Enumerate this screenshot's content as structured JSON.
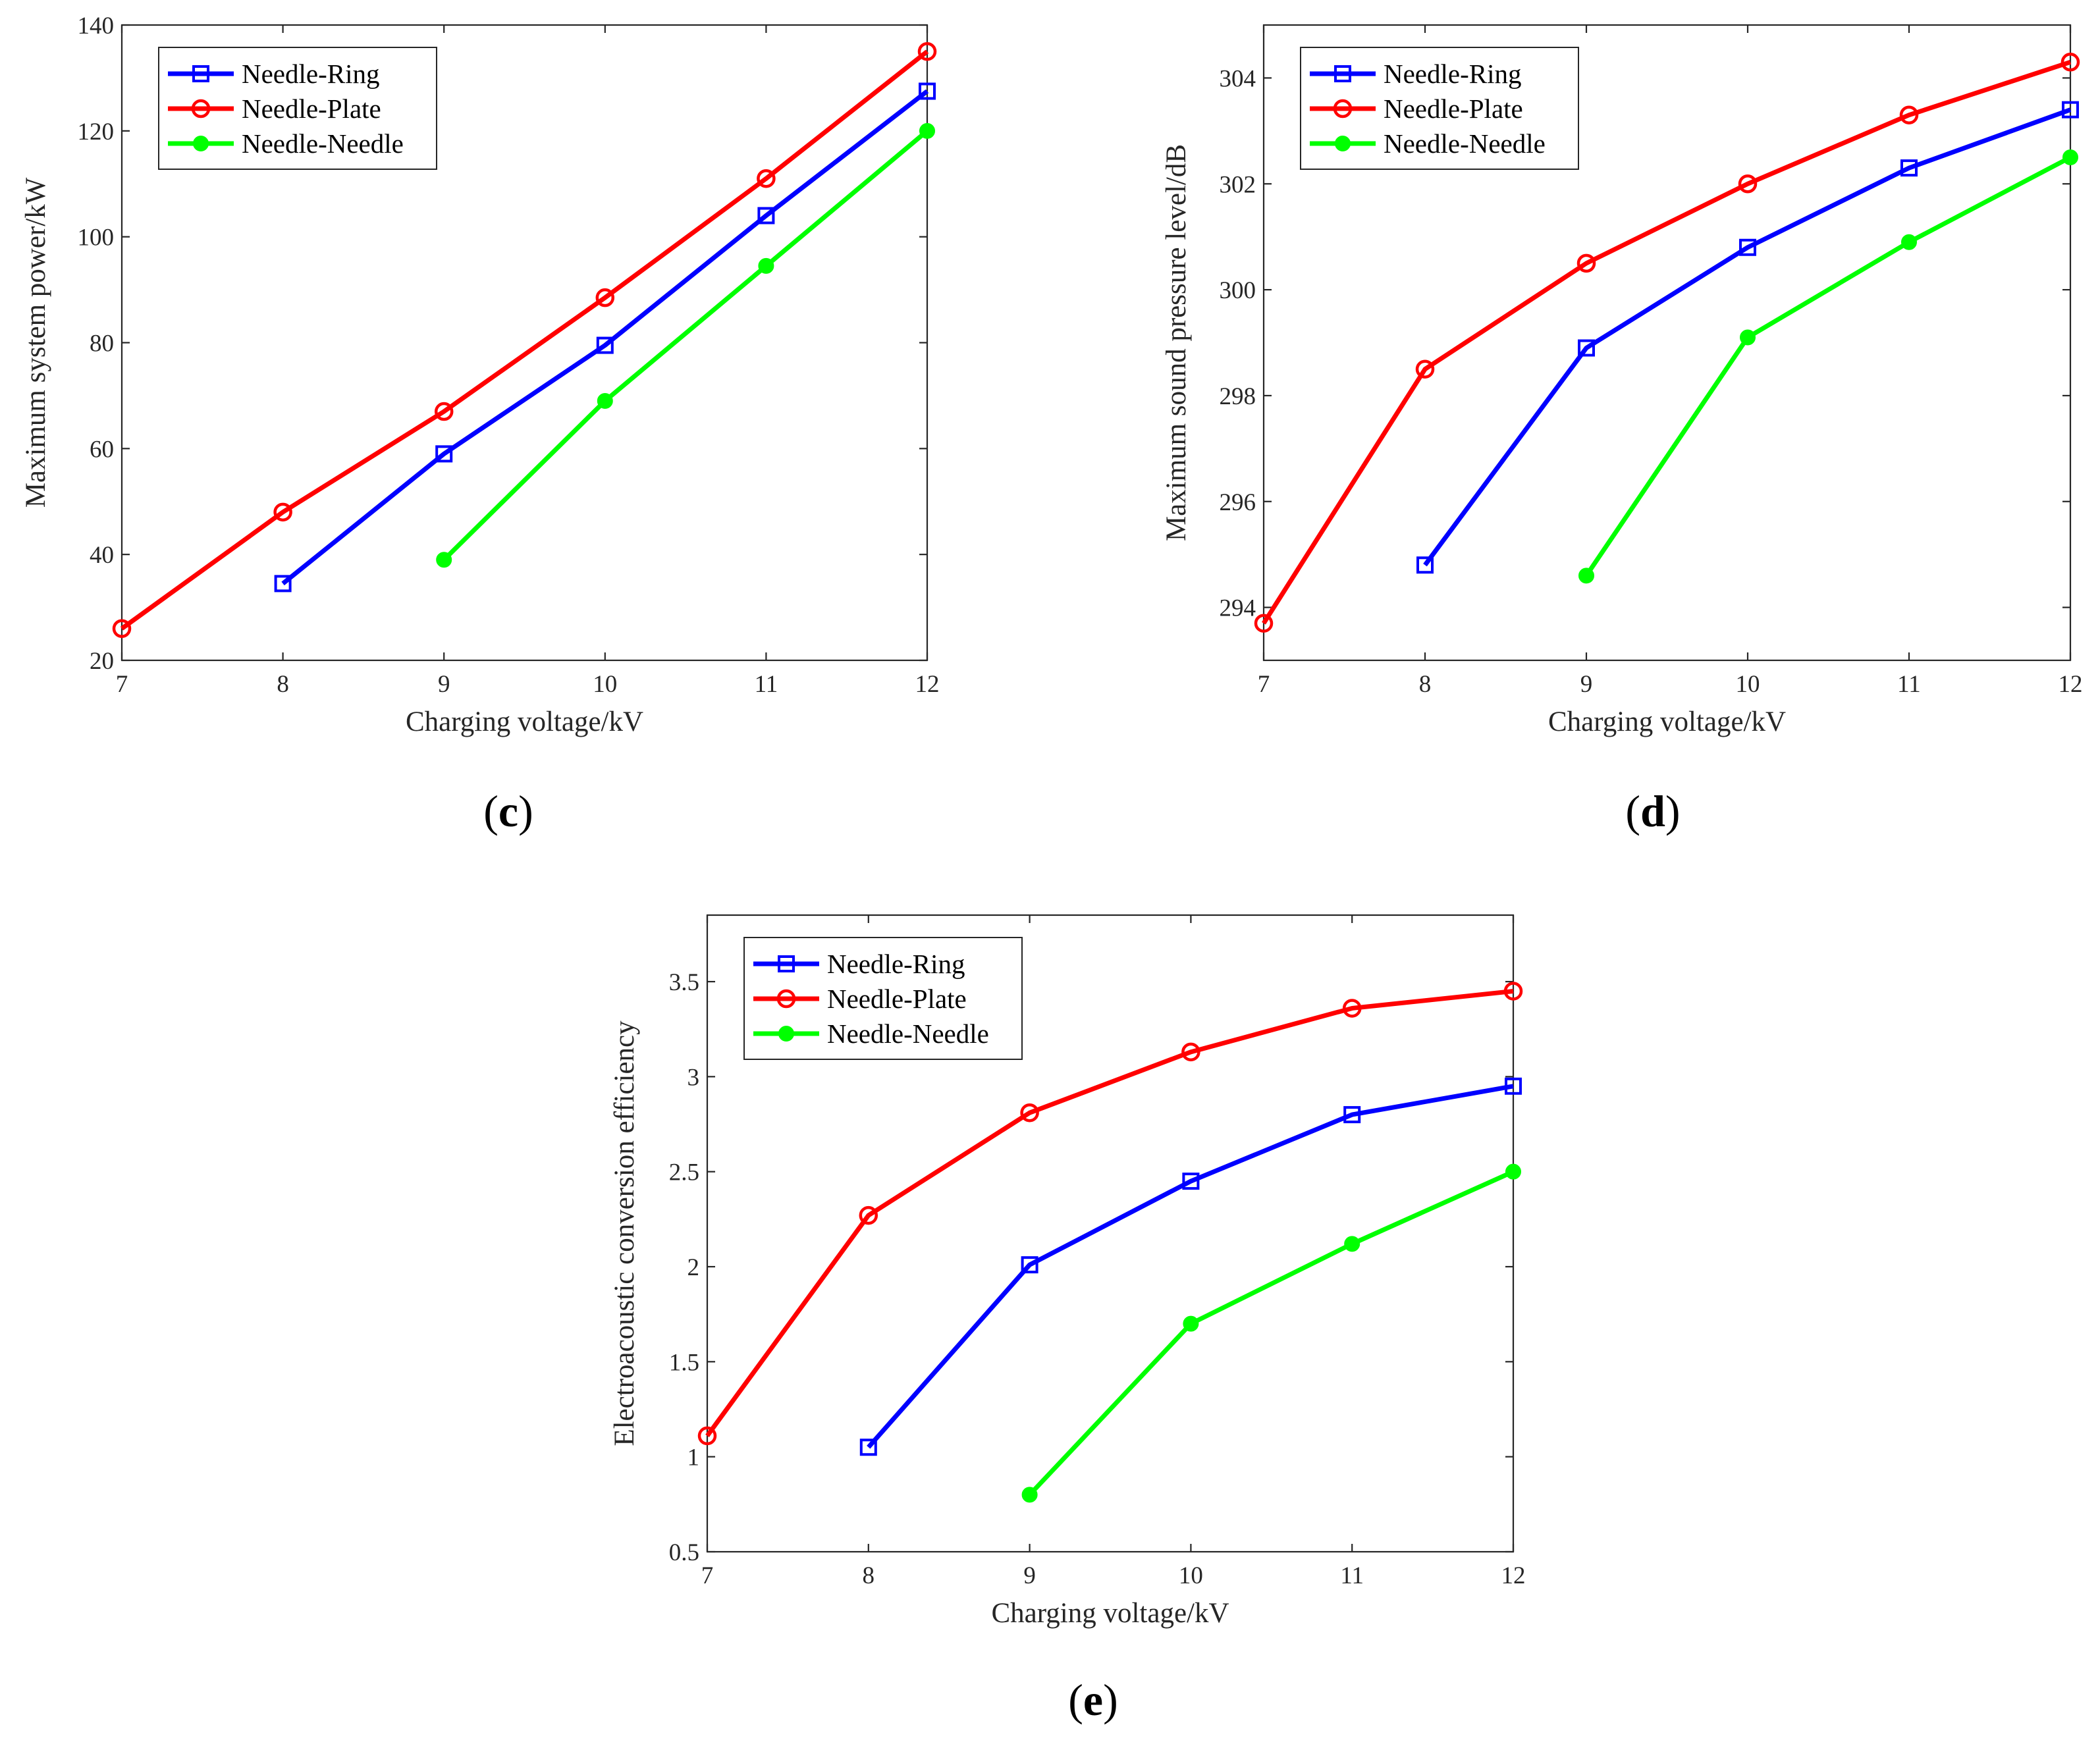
{
  "chart_data": [
    {
      "type": "line",
      "panel": "c",
      "xlabel": "Charging voltage/kV",
      "ylabel": "Maximum system power/kW",
      "xlim": [
        7,
        12
      ],
      "ylim": [
        20,
        140
      ],
      "xticks": [
        7,
        8,
        9,
        10,
        11,
        12
      ],
      "yticks": [
        20,
        40,
        60,
        80,
        100,
        120,
        140
      ],
      "legend_position": "top-left",
      "series": [
        {
          "name": "Needle-Ring",
          "color": "#0000ff",
          "marker": "square",
          "x": [
            8,
            9,
            10,
            11,
            12
          ],
          "values": [
            34.5,
            59,
            79.5,
            104,
            127.5
          ]
        },
        {
          "name": "Needle-Plate",
          "color": "#ff0000",
          "marker": "circle",
          "x": [
            7,
            8,
            9,
            10,
            11,
            12
          ],
          "values": [
            26,
            48,
            67,
            88.5,
            111,
            135
          ]
        },
        {
          "name": "Needle-Needle",
          "color": "#00ff00",
          "marker": "dot",
          "x": [
            9,
            10,
            11,
            12
          ],
          "values": [
            39,
            69,
            94.5,
            120
          ]
        }
      ]
    },
    {
      "type": "line",
      "panel": "d",
      "xlabel": "Charging voltage/kV",
      "ylabel": "Maximum sound pressure level/dB",
      "xlim": [
        7,
        12
      ],
      "ylim": [
        293,
        305
      ],
      "xticks": [
        7,
        8,
        9,
        10,
        11,
        12
      ],
      "yticks": [
        294,
        296,
        298,
        300,
        302,
        304
      ],
      "legend_position": "top-left",
      "series": [
        {
          "name": "Needle-Ring",
          "color": "#0000ff",
          "marker": "square",
          "x": [
            8,
            9,
            10,
            11,
            12
          ],
          "values": [
            294.8,
            298.9,
            300.8,
            302.3,
            303.4
          ]
        },
        {
          "name": "Needle-Plate",
          "color": "#ff0000",
          "marker": "circle",
          "x": [
            7,
            8,
            9,
            10,
            11,
            12
          ],
          "values": [
            293.7,
            298.5,
            300.5,
            302.0,
            303.3,
            304.3
          ]
        },
        {
          "name": "Needle-Needle",
          "color": "#00ff00",
          "marker": "dot",
          "x": [
            9,
            10,
            11,
            12
          ],
          "values": [
            294.6,
            299.1,
            300.9,
            302.5
          ]
        }
      ]
    },
    {
      "type": "line",
      "panel": "e",
      "xlabel": "Charging voltage/kV",
      "ylabel": "Electroacoustic conversion efficiency",
      "xlim": [
        7,
        12
      ],
      "ylim": [
        0.5,
        3.85
      ],
      "xticks": [
        7,
        8,
        9,
        10,
        11,
        12
      ],
      "yticks": [
        0.5,
        1,
        1.5,
        2,
        2.5,
        3,
        3.5
      ],
      "legend_position": "top-left",
      "series": [
        {
          "name": "Needle-Ring",
          "color": "#0000ff",
          "marker": "square",
          "x": [
            8,
            9,
            10,
            11,
            12
          ],
          "values": [
            1.05,
            2.01,
            2.45,
            2.8,
            2.95
          ]
        },
        {
          "name": "Needle-Plate",
          "color": "#ff0000",
          "marker": "circle",
          "x": [
            7,
            8,
            9,
            10,
            11,
            12
          ],
          "values": [
            1.11,
            2.27,
            2.81,
            3.13,
            3.36,
            3.45
          ]
        },
        {
          "name": "Needle-Needle",
          "color": "#00ff00",
          "marker": "dot",
          "x": [
            9,
            10,
            11,
            12
          ],
          "values": [
            0.8,
            1.7,
            2.12,
            2.5
          ]
        }
      ]
    }
  ],
  "panel_labels": {
    "c": {
      "open": "(",
      "letter": "c",
      "close": ")"
    },
    "d": {
      "open": "(",
      "letter": "d",
      "close": ")"
    },
    "e": {
      "open": "(",
      "letter": "e",
      "close": ")"
    }
  }
}
